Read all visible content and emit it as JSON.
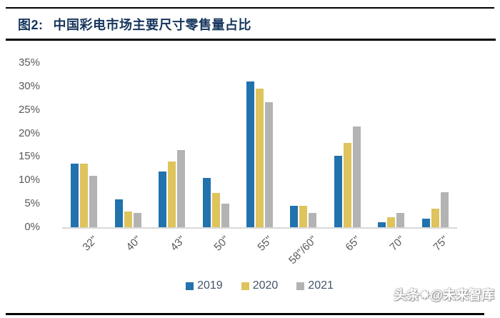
{
  "header": {
    "figure_label": "图2:",
    "title": "中国彩电市场主要尺寸零售量占比"
  },
  "chart_data": {
    "type": "bar",
    "title": "中国彩电市场主要尺寸零售量占比",
    "categories": [
      "32\"",
      "40\"",
      "43\"",
      "50\"",
      "55\"",
      "58\"/60\"",
      "65\"",
      "70\"",
      "75\""
    ],
    "series": [
      {
        "name": "2019",
        "color": "#2272AE",
        "values": [
          13.6,
          5.9,
          11.8,
          10.5,
          31.1,
          4.5,
          15.2,
          1.1,
          1.8
        ]
      },
      {
        "name": "2020",
        "color": "#DFC35D",
        "values": [
          13.5,
          3.3,
          14.0,
          7.3,
          29.5,
          4.5,
          17.9,
          2.2,
          3.9
        ]
      },
      {
        "name": "2021",
        "color": "#B3B3B3",
        "values": [
          10.9,
          3.1,
          16.5,
          5.0,
          26.6,
          3.0,
          21.5,
          3.1,
          7.4
        ]
      }
    ],
    "xlabel": "",
    "ylabel": "",
    "ylim": [
      0,
      35
    ],
    "yticks": [
      "0%",
      "5%",
      "10%",
      "15%",
      "20%",
      "25%",
      "30%",
      "35%"
    ],
    "grid": false,
    "legend_position": "bottom"
  },
  "watermark": {
    "prefix": "头条",
    "suffix": "@未来智库",
    "logo": "sun-logo"
  },
  "colors": {
    "title_text": "#17365D",
    "axis_text": "#595959",
    "axis_line": "#D9D9D9",
    "rule": "#000000"
  }
}
